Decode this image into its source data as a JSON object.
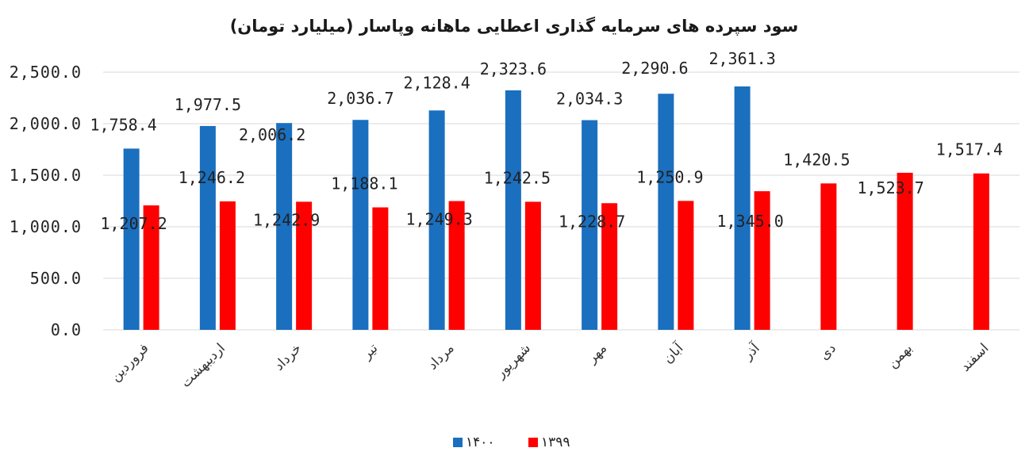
{
  "chart_data": {
    "type": "bar",
    "title": "سود سپرده های سرمایه گذاری اعطایی ماهانه وپاسار (میلیارد تومان)",
    "categories": [
      "فروردین",
      "اردیبهشت",
      "خرداد",
      "تیر",
      "مرداد",
      "شهریور",
      "مهر",
      "آبان",
      "آذر",
      "دی",
      "بهمن",
      "اسفند"
    ],
    "series": [
      {
        "name": "۱۴۰۰",
        "color": "#1a6fbf",
        "values": [
          1758.4,
          1977.5,
          2006.2,
          2036.7,
          2128.4,
          2323.6,
          2034.3,
          2290.6,
          2361.3,
          null,
          null,
          null
        ]
      },
      {
        "name": "۱۳۹۹",
        "color": "#ff0000",
        "values": [
          1207.2,
          1246.2,
          1242.9,
          1188.1,
          1249.3,
          1242.5,
          1228.7,
          1250.9,
          1345.0,
          1420.5,
          1523.7,
          1517.4
        ]
      }
    ],
    "ylim": [
      0,
      2500
    ],
    "yticks": [
      "0.0",
      "500.0",
      "1,000.0",
      "1,500.0",
      "2,000.0",
      "2,500.0"
    ],
    "data_labels": {
      "s0": [
        "1,758.4",
        "1,977.5",
        "2,006.2",
        "2,036.7",
        "2,128.4",
        "2,323.6",
        "2,034.3",
        "2,290.6",
        "2,361.3"
      ],
      "s1": [
        "1,207.2",
        "1,246.2",
        "1,242.9",
        "1,188.1",
        "1,249.3",
        "1,242.5",
        "1,228.7",
        "1,250.9",
        "1,345.0",
        "1,420.5",
        "1,523.7",
        "1,517.4"
      ]
    },
    "grid": true,
    "legend_position": "bottom"
  }
}
